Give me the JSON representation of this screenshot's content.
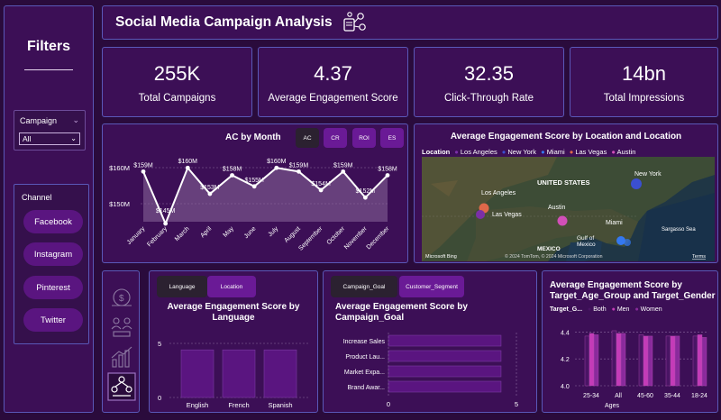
{
  "sidebar": {
    "title": "Filters",
    "campaign": {
      "label": "Campaign",
      "value": "All"
    },
    "channel": {
      "label": "Channel",
      "items": [
        "Facebook",
        "Instagram",
        "Pinterest",
        "Twitter"
      ]
    }
  },
  "header": {
    "title": "Social Media Campaign Analysis"
  },
  "kpis": [
    {
      "value": "255K",
      "label": "Total Campaigns"
    },
    {
      "value": "4.37",
      "label": "Average Engagement Score"
    },
    {
      "value": "32.35",
      "label": "Click-Through Rate"
    },
    {
      "value": "14bn",
      "label": "Total Impressions"
    }
  ],
  "ac_month": {
    "title": "AC by Month",
    "buttons": [
      "AC",
      "CR",
      "ROI",
      "ES"
    ],
    "yticks": [
      "$160M",
      "$150M"
    ]
  },
  "map": {
    "title": "Average Engagement Score by Location and Location",
    "legend_title": "Location",
    "legend": [
      {
        "name": "Los Angeles",
        "color": "#7b2fa8"
      },
      {
        "name": "New York",
        "color": "#3b4fd0"
      },
      {
        "name": "Miami",
        "color": "#3478f0"
      },
      {
        "name": "Las Vegas",
        "color": "#e0684a"
      },
      {
        "name": "Austin",
        "color": "#d24fb8"
      }
    ],
    "labels": {
      "united_states": "UNITED STATES",
      "new_york": "New York",
      "los_angeles": "Los Angeles",
      "las_vegas": "Las Vegas",
      "austin": "Austin",
      "miami": "Miami",
      "gulf": "Gulf of",
      "mexico": "Mexico",
      "mexico_caps": "MEXICO",
      "sargasso": "Sargasso Sea",
      "bing": "Microsoft Bing",
      "copyright": "© 2024 TomTom, © 2024 Microsoft Corporation",
      "terms": "Terms"
    }
  },
  "nav_icons": [
    "money-icon",
    "people-icon",
    "chart-icon",
    "network-icon"
  ],
  "lang_panel": {
    "buttons": [
      "Language",
      "Location"
    ],
    "title_line1": "Average Engagement Score by",
    "title_line2": "Language"
  },
  "goal_panel": {
    "buttons": [
      "Campaign_Goal",
      "Customer_Segment"
    ],
    "title_line1": "Average Engagement Score by",
    "title_line2": "Campaign_Goal"
  },
  "age_panel": {
    "title_line1": "Average Engagement Score by",
    "title_line2": "Target_Age_Group and Target_Gender",
    "legend_title": "Target_G...",
    "legend": [
      {
        "name": "Both",
        "color": "#4a1565"
      },
      {
        "name": "Men",
        "color": "#c43bb8"
      },
      {
        "name": "Women",
        "color": "#8a2a9c"
      }
    ],
    "extra_label": "Ages"
  },
  "chart_data": [
    {
      "type": "area",
      "title": "AC by Month",
      "categories": [
        "January",
        "February",
        "March",
        "April",
        "May",
        "June",
        "July",
        "August",
        "September",
        "October",
        "November",
        "December"
      ],
      "values": [
        159,
        145,
        160,
        153,
        158,
        155,
        160,
        159,
        154,
        159,
        152,
        158
      ],
      "labels": [
        "$159M",
        "$145M",
        "$160M",
        "$153M",
        "$158M",
        "$155M",
        "$160M",
        "$159M",
        "$154M",
        "$159M",
        "$152M",
        "$158M"
      ],
      "ylim": [
        145,
        162
      ],
      "color": "#ffffff"
    },
    {
      "type": "bar",
      "title": "Average Engagement Score by Language",
      "categories": [
        "English",
        "French",
        "Spanish"
      ],
      "values": [
        4.4,
        4.4,
        4.4
      ],
      "yticks": [
        0,
        5
      ],
      "ylim": [
        0,
        5
      ],
      "color": "#5a1580"
    },
    {
      "type": "bar",
      "orientation": "horizontal",
      "title": "Average Engagement Score by Campaign_Goal",
      "categories": [
        "Increase Sales",
        "Product Lau...",
        "Market Expa...",
        "Brand Awar..."
      ],
      "values": [
        4.4,
        4.4,
        4.4,
        4.4
      ],
      "xticks": [
        0,
        5
      ],
      "xlim": [
        0,
        5
      ],
      "color": "#5a1580"
    },
    {
      "type": "bar",
      "title": "Average Engagement Score by Target_Age_Group and Target_Gender",
      "categories": [
        "25-34",
        "All",
        "45-60",
        "35-44",
        "18-24"
      ],
      "series": [
        {
          "name": "Both",
          "values": [
            4.37,
            4.41,
            4.38,
            4.37,
            4.37
          ]
        },
        {
          "name": "Men",
          "values": [
            4.39,
            4.39,
            4.37,
            4.37,
            4.38
          ]
        },
        {
          "name": "Women",
          "values": [
            4.38,
            4.39,
            4.37,
            4.37,
            4.36
          ]
        }
      ],
      "yticks": [
        "4.0",
        "4.2",
        "4.4"
      ],
      "ylim": [
        4.0,
        4.45
      ]
    }
  ]
}
